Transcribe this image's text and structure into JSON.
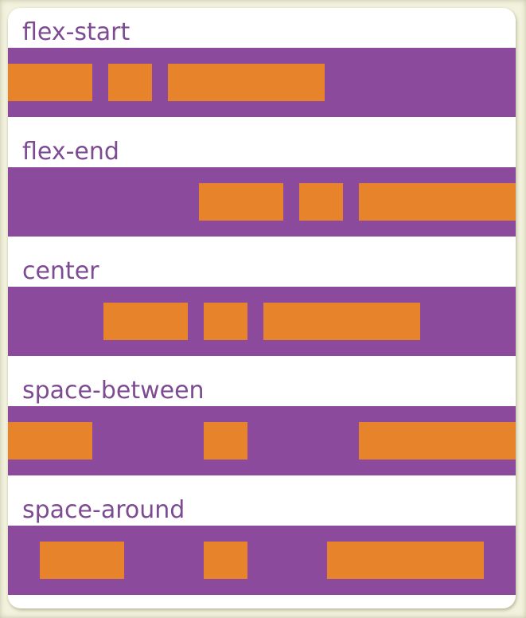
{
  "colors": {
    "page_bg": "#f2f2de",
    "card_bg": "#ffffff",
    "container_bg": "#8b4a9c",
    "item_bg": "#e7842b",
    "label_text": "#7d4b92"
  },
  "sections": [
    {
      "label": "flex-start",
      "justify": "flex-start",
      "items": [
        "medium",
        "small",
        "large"
      ]
    },
    {
      "label": "flex-end",
      "justify": "flex-end",
      "items": [
        "medium",
        "small",
        "large"
      ]
    },
    {
      "label": "center",
      "justify": "center",
      "items": [
        "medium",
        "small",
        "large"
      ]
    },
    {
      "label": "space-between",
      "justify": "space-between",
      "items": [
        "medium",
        "small",
        "large"
      ]
    },
    {
      "label": "space-around",
      "justify": "space-around",
      "items": [
        "medium",
        "small",
        "large"
      ]
    }
  ]
}
